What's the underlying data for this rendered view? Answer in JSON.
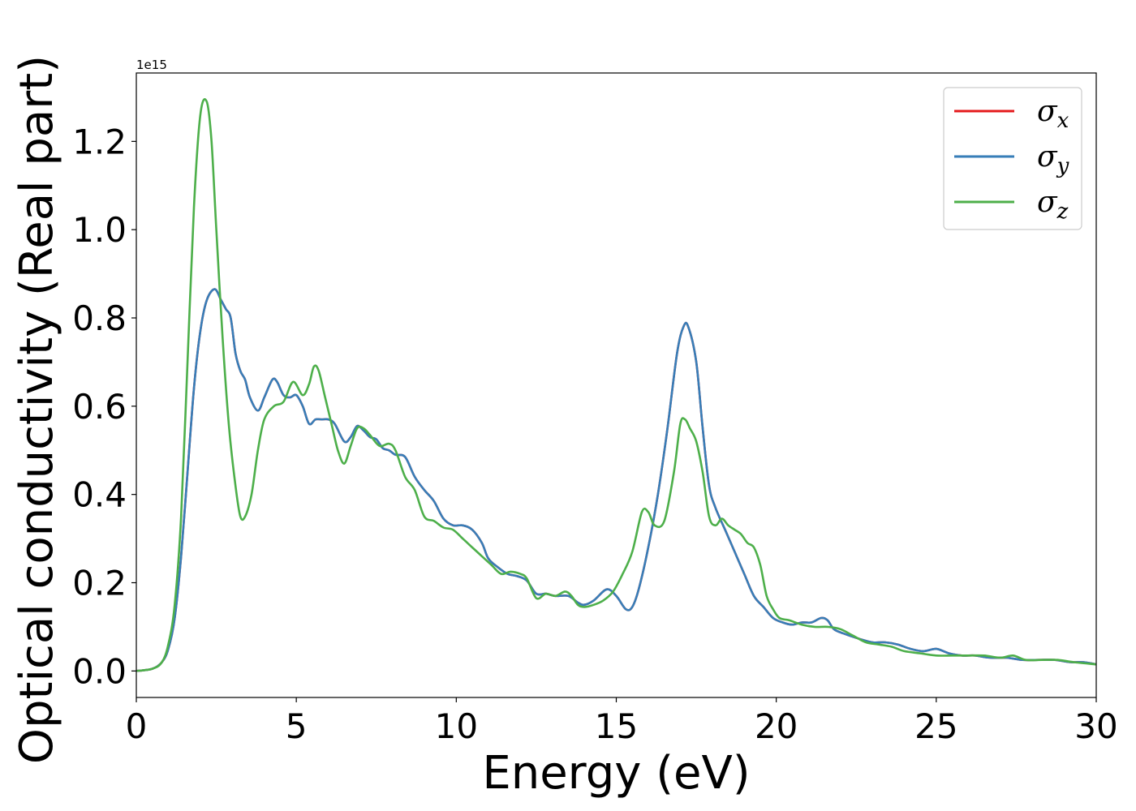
{
  "chart_data": {
    "type": "line",
    "xlabel": "Energy (eV)",
    "ylabel": "Optical conductivity (Real part)",
    "y_offset_text": "1e15",
    "xlim": [
      0,
      30
    ],
    "ylim": [
      -0.06,
      1.355
    ],
    "xticks": [
      0,
      5,
      10,
      15,
      20,
      25,
      30
    ],
    "xtick_labels": [
      "0",
      "5",
      "10",
      "15",
      "20",
      "25",
      "30"
    ],
    "yticks": [
      0.0,
      0.2,
      0.4,
      0.6,
      0.8,
      1.0,
      1.2
    ],
    "ytick_labels": [
      "0.0",
      "0.2",
      "0.4",
      "0.6",
      "0.8",
      "1.0",
      "1.2"
    ],
    "grid": false,
    "legend_position": "top-right",
    "series": [
      {
        "name": "σx",
        "legend_base": "σ",
        "legend_sub": "x",
        "color": "#e41a1c",
        "x": [
          0,
          0.5,
          0.8,
          1.0,
          1.2,
          1.4,
          1.6,
          1.8,
          2.0,
          2.2,
          2.45,
          2.65,
          2.8,
          2.95,
          3.1,
          3.25,
          3.4,
          3.55,
          3.8,
          4.0,
          4.25,
          4.4,
          4.6,
          4.8,
          5.0,
          5.2,
          5.4,
          5.6,
          5.8,
          6.0,
          6.2,
          6.5,
          6.7,
          6.9,
          7.1,
          7.3,
          7.5,
          7.7,
          7.9,
          8.1,
          8.4,
          8.7,
          9.0,
          9.3,
          9.6,
          9.9,
          10.2,
          10.5,
          10.8,
          11.0,
          11.3,
          11.6,
          11.9,
          12.2,
          12.5,
          12.8,
          13.1,
          13.5,
          13.8,
          14.0,
          14.3,
          14.7,
          15.0,
          15.3,
          15.5,
          15.7,
          16.0,
          16.3,
          16.6,
          16.9,
          17.1,
          17.25,
          17.5,
          17.7,
          17.9,
          18.1,
          18.4,
          18.7,
          19.0,
          19.3,
          19.6,
          19.9,
          20.2,
          20.5,
          20.8,
          21.1,
          21.4,
          21.6,
          21.8,
          22.1,
          22.5,
          23.0,
          23.4,
          23.8,
          24.2,
          24.6,
          25.0,
          25.4,
          25.8,
          26.2,
          26.7,
          27.2,
          27.7,
          28.2,
          28.7,
          29.2,
          29.6,
          30.0
        ],
        "y": [
          0.0,
          0.005,
          0.02,
          0.05,
          0.12,
          0.26,
          0.45,
          0.64,
          0.77,
          0.84,
          0.865,
          0.84,
          0.82,
          0.8,
          0.72,
          0.68,
          0.66,
          0.62,
          0.59,
          0.62,
          0.66,
          0.655,
          0.625,
          0.62,
          0.625,
          0.6,
          0.56,
          0.57,
          0.57,
          0.57,
          0.56,
          0.52,
          0.53,
          0.555,
          0.545,
          0.53,
          0.525,
          0.505,
          0.5,
          0.49,
          0.485,
          0.44,
          0.41,
          0.385,
          0.345,
          0.33,
          0.33,
          0.32,
          0.29,
          0.255,
          0.235,
          0.22,
          0.215,
          0.205,
          0.175,
          0.175,
          0.17,
          0.17,
          0.155,
          0.15,
          0.16,
          0.185,
          0.17,
          0.14,
          0.145,
          0.185,
          0.28,
          0.4,
          0.55,
          0.72,
          0.78,
          0.78,
          0.7,
          0.55,
          0.42,
          0.37,
          0.32,
          0.27,
          0.22,
          0.17,
          0.145,
          0.12,
          0.11,
          0.105,
          0.11,
          0.11,
          0.12,
          0.115,
          0.095,
          0.085,
          0.075,
          0.065,
          0.065,
          0.06,
          0.05,
          0.045,
          0.05,
          0.04,
          0.035,
          0.035,
          0.03,
          0.03,
          0.025,
          0.025,
          0.025,
          0.02,
          0.02,
          0.015
        ]
      },
      {
        "name": "σy",
        "legend_base": "σ",
        "legend_sub": "y",
        "color": "#377eb8",
        "x": [
          0,
          0.5,
          0.8,
          1.0,
          1.2,
          1.4,
          1.6,
          1.8,
          2.0,
          2.2,
          2.45,
          2.65,
          2.8,
          2.95,
          3.1,
          3.25,
          3.4,
          3.55,
          3.8,
          4.0,
          4.25,
          4.4,
          4.6,
          4.8,
          5.0,
          5.2,
          5.4,
          5.6,
          5.8,
          6.0,
          6.2,
          6.5,
          6.7,
          6.9,
          7.1,
          7.3,
          7.5,
          7.7,
          7.9,
          8.1,
          8.4,
          8.7,
          9.0,
          9.3,
          9.6,
          9.9,
          10.2,
          10.5,
          10.8,
          11.0,
          11.3,
          11.6,
          11.9,
          12.2,
          12.5,
          12.8,
          13.1,
          13.5,
          13.8,
          14.0,
          14.3,
          14.7,
          15.0,
          15.3,
          15.5,
          15.7,
          16.0,
          16.3,
          16.6,
          16.9,
          17.1,
          17.25,
          17.5,
          17.7,
          17.9,
          18.1,
          18.4,
          18.7,
          19.0,
          19.3,
          19.6,
          19.9,
          20.2,
          20.5,
          20.8,
          21.1,
          21.4,
          21.6,
          21.8,
          22.1,
          22.5,
          23.0,
          23.4,
          23.8,
          24.2,
          24.6,
          25.0,
          25.4,
          25.8,
          26.2,
          26.7,
          27.2,
          27.7,
          28.2,
          28.7,
          29.2,
          29.6,
          30.0
        ],
        "y": [
          0.0,
          0.005,
          0.02,
          0.05,
          0.12,
          0.26,
          0.45,
          0.64,
          0.77,
          0.84,
          0.865,
          0.84,
          0.82,
          0.8,
          0.72,
          0.68,
          0.66,
          0.62,
          0.59,
          0.62,
          0.66,
          0.655,
          0.625,
          0.62,
          0.625,
          0.6,
          0.56,
          0.57,
          0.57,
          0.57,
          0.56,
          0.52,
          0.53,
          0.555,
          0.545,
          0.53,
          0.525,
          0.505,
          0.5,
          0.49,
          0.485,
          0.44,
          0.41,
          0.385,
          0.345,
          0.33,
          0.33,
          0.32,
          0.29,
          0.255,
          0.235,
          0.22,
          0.215,
          0.205,
          0.175,
          0.175,
          0.17,
          0.17,
          0.155,
          0.15,
          0.16,
          0.185,
          0.17,
          0.14,
          0.145,
          0.185,
          0.28,
          0.4,
          0.55,
          0.72,
          0.78,
          0.78,
          0.7,
          0.55,
          0.42,
          0.37,
          0.32,
          0.27,
          0.22,
          0.17,
          0.145,
          0.12,
          0.11,
          0.105,
          0.11,
          0.11,
          0.12,
          0.115,
          0.095,
          0.085,
          0.075,
          0.065,
          0.065,
          0.06,
          0.05,
          0.045,
          0.05,
          0.04,
          0.035,
          0.035,
          0.03,
          0.03,
          0.025,
          0.025,
          0.025,
          0.02,
          0.02,
          0.015
        ]
      },
      {
        "name": "σz",
        "legend_base": "σ",
        "legend_sub": "z",
        "color": "#4daf4a",
        "x": [
          0,
          0.5,
          0.8,
          1.0,
          1.2,
          1.4,
          1.6,
          1.8,
          2.0,
          2.2,
          2.35,
          2.5,
          2.7,
          2.9,
          3.1,
          3.25,
          3.4,
          3.6,
          3.8,
          4.0,
          4.3,
          4.6,
          4.9,
          5.2,
          5.4,
          5.55,
          5.7,
          5.9,
          6.1,
          6.3,
          6.5,
          6.7,
          6.9,
          7.1,
          7.3,
          7.6,
          7.9,
          8.1,
          8.4,
          8.7,
          9.0,
          9.3,
          9.6,
          9.9,
          10.2,
          10.5,
          10.8,
          11.1,
          11.4,
          11.7,
          12.0,
          12.2,
          12.5,
          12.8,
          13.1,
          13.4,
          13.6,
          13.8,
          14.0,
          14.3,
          14.6,
          14.9,
          15.2,
          15.5,
          15.8,
          16.0,
          16.2,
          16.5,
          16.8,
          17.0,
          17.15,
          17.3,
          17.5,
          17.7,
          17.9,
          18.1,
          18.3,
          18.5,
          18.7,
          18.9,
          19.1,
          19.3,
          19.5,
          19.7,
          19.9,
          20.1,
          20.4,
          20.8,
          21.2,
          21.6,
          22.0,
          22.4,
          22.8,
          23.2,
          23.6,
          24.0,
          24.5,
          25.0,
          25.5,
          26.0,
          26.5,
          27.0,
          27.4,
          27.8,
          28.3,
          28.8,
          29.3,
          30.0
        ],
        "y": [
          0.0,
          0.005,
          0.02,
          0.06,
          0.15,
          0.35,
          0.7,
          1.05,
          1.26,
          1.29,
          1.2,
          1.0,
          0.75,
          0.55,
          0.42,
          0.35,
          0.35,
          0.4,
          0.5,
          0.57,
          0.6,
          0.61,
          0.655,
          0.625,
          0.65,
          0.69,
          0.68,
          0.62,
          0.56,
          0.5,
          0.47,
          0.51,
          0.55,
          0.55,
          0.535,
          0.51,
          0.515,
          0.5,
          0.44,
          0.41,
          0.35,
          0.34,
          0.325,
          0.32,
          0.3,
          0.28,
          0.26,
          0.24,
          0.22,
          0.225,
          0.22,
          0.21,
          0.165,
          0.175,
          0.17,
          0.18,
          0.17,
          0.15,
          0.145,
          0.15,
          0.16,
          0.18,
          0.22,
          0.27,
          0.36,
          0.36,
          0.33,
          0.34,
          0.45,
          0.56,
          0.57,
          0.55,
          0.52,
          0.45,
          0.35,
          0.33,
          0.345,
          0.33,
          0.32,
          0.31,
          0.29,
          0.28,
          0.24,
          0.17,
          0.14,
          0.12,
          0.115,
          0.105,
          0.1,
          0.1,
          0.095,
          0.08,
          0.065,
          0.06,
          0.055,
          0.045,
          0.04,
          0.035,
          0.035,
          0.035,
          0.035,
          0.03,
          0.035,
          0.025,
          0.025,
          0.025,
          0.02,
          0.015
        ]
      }
    ]
  }
}
